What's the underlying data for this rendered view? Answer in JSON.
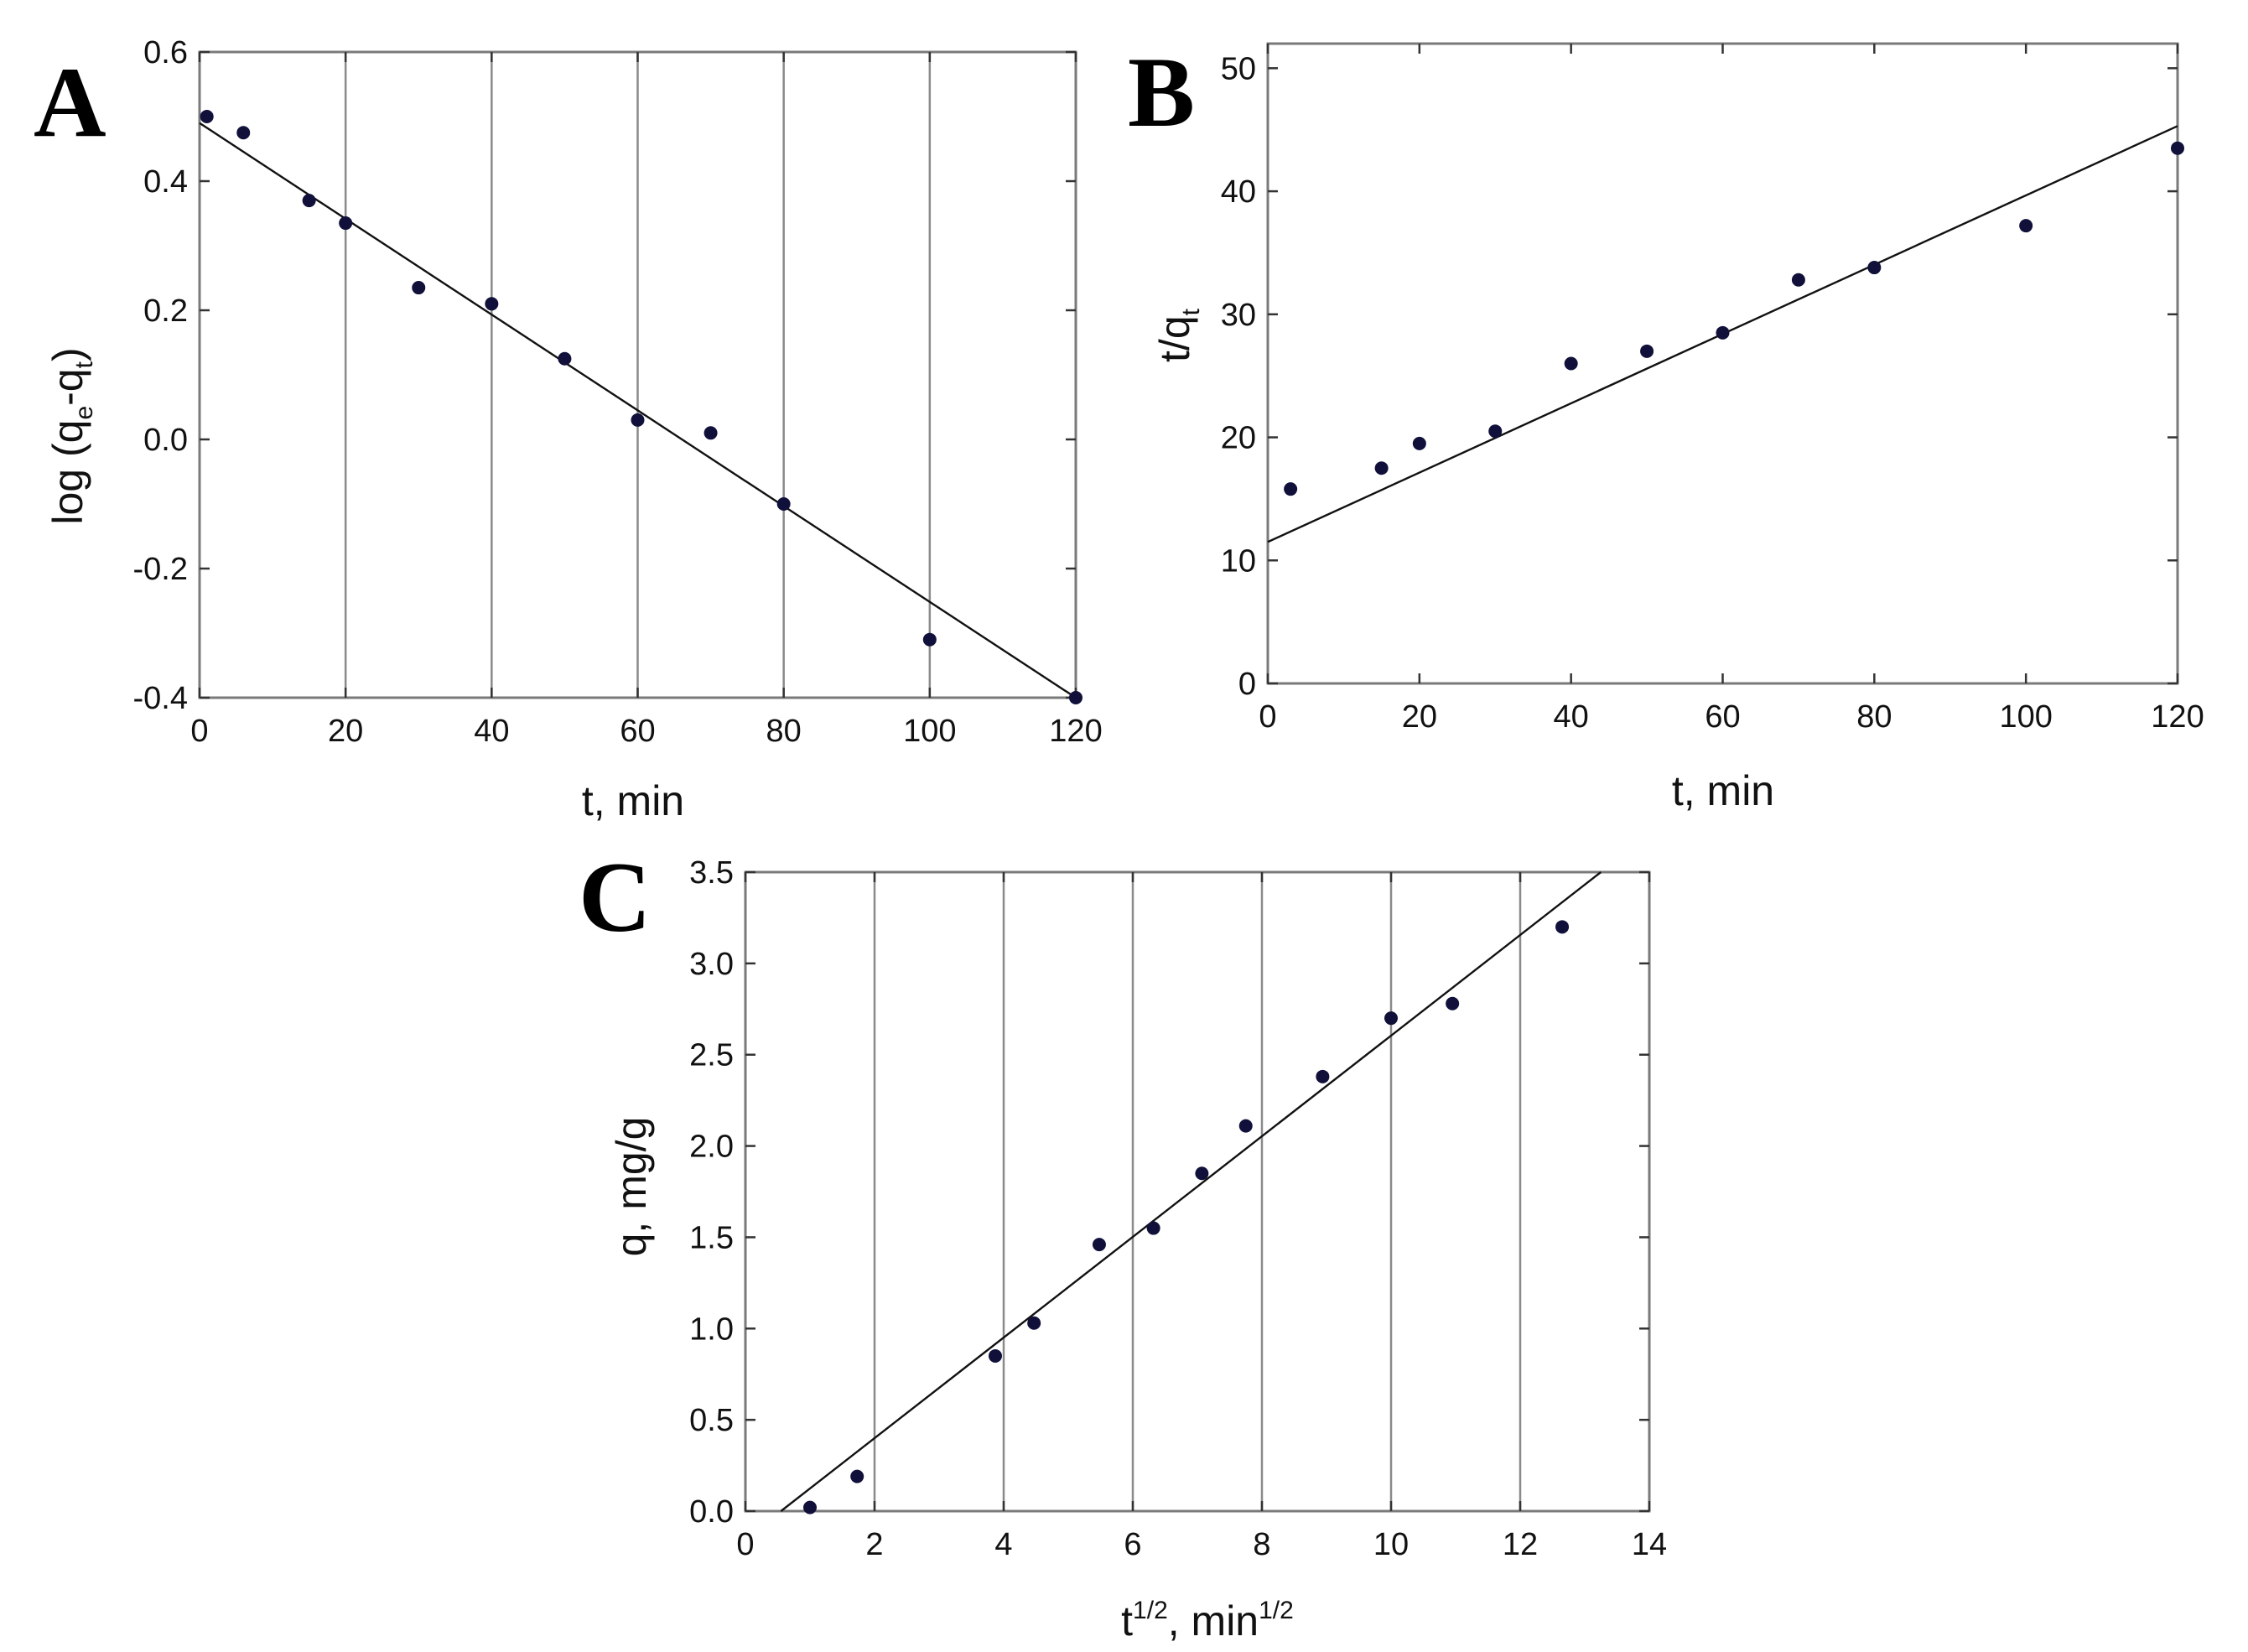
{
  "chart_data": [
    {
      "panel": "A",
      "type": "scatter",
      "xlabel": "t, min",
      "ylabel_parts": [
        "log (q",
        "e",
        "-q",
        "t",
        ")"
      ],
      "xlim": [
        0,
        120
      ],
      "ylim": [
        -0.4,
        0.6
      ],
      "xticks": [
        0,
        20,
        40,
        60,
        80,
        100,
        120
      ],
      "yticks": [
        -0.4,
        -0.2,
        0.0,
        0.2,
        0.4,
        0.6
      ],
      "ytick_labels": [
        "-0.4",
        "-0.2",
        "0.0",
        "0.2",
        "0.4",
        "0.6"
      ],
      "grid": "vertical",
      "points": {
        "x": [
          1,
          6,
          15,
          20,
          30,
          40,
          50,
          60,
          70,
          80,
          100,
          120
        ],
        "y": [
          0.5,
          0.475,
          0.37,
          0.335,
          0.235,
          0.21,
          0.125,
          0.03,
          0.01,
          -0.1,
          -0.31,
          -0.4
        ]
      },
      "fit": {
        "x": [
          0,
          120
        ],
        "y": [
          0.49,
          -0.4
        ]
      }
    },
    {
      "panel": "B",
      "type": "scatter",
      "xlabel": "t, min",
      "ylabel_parts": [
        "t/q",
        "t"
      ],
      "xlim": [
        0,
        120
      ],
      "ylim": [
        0,
        52
      ],
      "xticks": [
        0,
        20,
        40,
        60,
        80,
        100,
        120
      ],
      "yticks": [
        0,
        10,
        20,
        30,
        40,
        50
      ],
      "ytick_labels": [
        "0",
        "10",
        "20",
        "30",
        "40",
        "50"
      ],
      "grid": "none",
      "points": {
        "x": [
          3,
          15,
          20,
          30,
          40,
          50,
          60,
          70,
          80,
          100,
          120
        ],
        "y": [
          15.8,
          17.5,
          19.5,
          20.5,
          26.0,
          27.0,
          28.5,
          32.8,
          33.8,
          37.2,
          43.5
        ]
      },
      "fit": {
        "x": [
          0,
          120
        ],
        "y": [
          11.5,
          45.3
        ]
      }
    },
    {
      "panel": "C",
      "type": "scatter",
      "xlabel_parts": [
        "t",
        "1/2",
        ", min",
        "1/2"
      ],
      "ylabel": "q, mg/g",
      "xlim": [
        0,
        14
      ],
      "ylim": [
        0,
        3.5
      ],
      "xticks": [
        0,
        2,
        4,
        6,
        8,
        10,
        12,
        14
      ],
      "yticks": [
        0,
        0.5,
        1.0,
        1.5,
        2.0,
        2.5,
        3.0,
        3.5
      ],
      "ytick_labels": [
        "0.0",
        "0.5",
        "1.0",
        "1.5",
        "2.0",
        "2.5",
        "3.0",
        "3.5"
      ],
      "grid": "vertical",
      "points": {
        "x": [
          1.0,
          1.73,
          3.87,
          4.47,
          5.48,
          6.32,
          7.07,
          7.75,
          8.94,
          10.0,
          10.95,
          12.65
        ],
        "y": [
          0.02,
          0.19,
          0.85,
          1.03,
          1.46,
          1.55,
          1.85,
          2.11,
          2.38,
          2.7,
          2.78,
          3.2
        ]
      },
      "fit": {
        "x": [
          0.55,
          13.25
        ],
        "y": [
          0.0,
          3.5
        ]
      }
    }
  ]
}
